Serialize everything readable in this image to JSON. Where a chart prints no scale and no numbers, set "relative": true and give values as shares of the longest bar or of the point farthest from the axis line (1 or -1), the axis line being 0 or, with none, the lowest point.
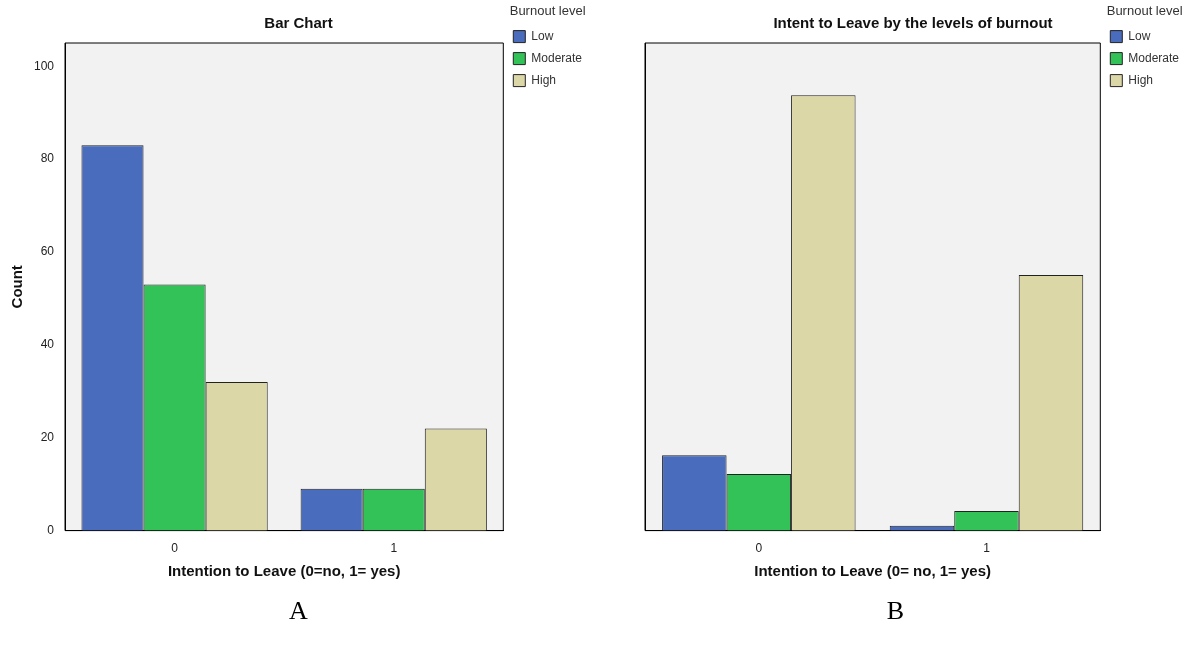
{
  "chart_data": [
    {
      "type": "bar",
      "title": "Bar Chart",
      "xlabel": "Intention to Leave (0=no, 1= yes)",
      "ylabel": "Count",
      "legend_title": "Burnout level",
      "categories": [
        "0",
        "1"
      ],
      "series": [
        {
          "name": "Low",
          "color": "#4a6cbc",
          "values": [
            83,
            9
          ]
        },
        {
          "name": "Moderate",
          "color": "#33c258",
          "values": [
            53,
            9
          ]
        },
        {
          "name": "High",
          "color": "#dcd7a7",
          "values": [
            32,
            22
          ]
        }
      ],
      "ylim": [
        0,
        105
      ],
      "yticks": [
        0,
        20,
        40,
        60,
        80,
        100
      ],
      "grid": false,
      "legend": "top right",
      "annotations": [
        "A"
      ]
    },
    {
      "type": "bar",
      "title": "Intent to Leave by the levels of burnout",
      "xlabel": "Intention to Leave (0= no, 1= yes)",
      "legend_title": "Burnout level",
      "categories": [
        "0",
        "1"
      ],
      "relative": true,
      "series": [
        {
          "name": "Low",
          "color": "#4a6cbc",
          "values": [
            0.173,
            0.011
          ]
        },
        {
          "name": "Moderate",
          "color": "#33c258",
          "values": [
            0.13,
            0.045
          ]
        },
        {
          "name": "High",
          "color": "#dcd7a7",
          "values": [
            1,
            0.587
          ]
        }
      ],
      "grid": false,
      "legend": "top right",
      "annotations": [
        "B"
      ]
    }
  ]
}
